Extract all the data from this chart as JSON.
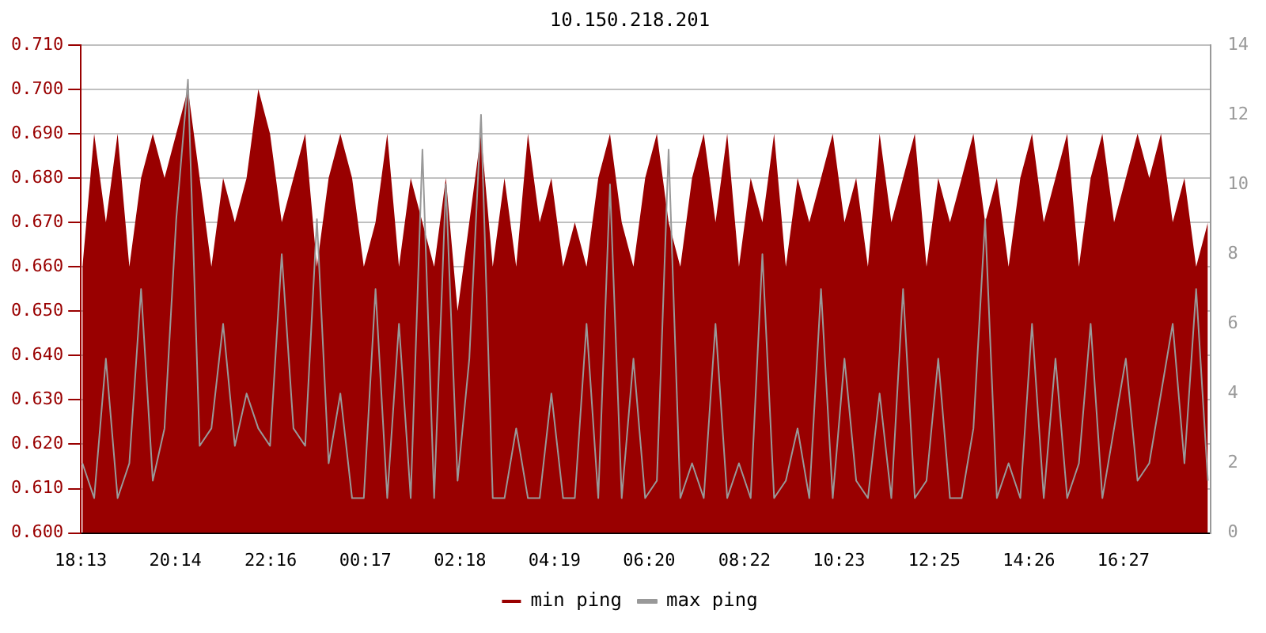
{
  "chart_data": {
    "type": "area",
    "title": "10.150.218.201",
    "legend": "bottom",
    "grid": "y",
    "marker": "none",
    "x": [
      "--01-01T18:15",
      "--01-01T18:30",
      "--01-01T18:45",
      "--01-01T19:00",
      "--01-01T19:15",
      "--01-01T19:30",
      "--01-01T19:45",
      "--01-01T20:00",
      "--01-01T20:15",
      "--01-01T20:30",
      "--01-01T20:45",
      "--01-01T21:00",
      "--01-01T21:15",
      "--01-01T21:30",
      "--01-01T21:45",
      "--01-01T22:00",
      "--01-01T22:15",
      "--01-01T22:30",
      "--01-01T22:45",
      "--01-01T23:00",
      "--01-01T23:15",
      "--01-01T23:30",
      "--01-01T23:45",
      "--01-02T00:00",
      "--01-02T00:15",
      "--01-02T00:30",
      "--01-02T00:45",
      "--01-02T01:00",
      "--01-02T01:15",
      "--01-02T01:30",
      "--01-02T01:45",
      "--01-02T02:00",
      "--01-02T02:15",
      "--01-02T02:30",
      "--01-02T02:45",
      "--01-02T03:00",
      "--01-02T03:15",
      "--01-02T03:30",
      "--01-02T03:45",
      "--01-02T04:00",
      "--01-02T04:15",
      "--01-02T04:30",
      "--01-02T04:45",
      "--01-02T05:00",
      "--01-02T05:15",
      "--01-02T05:30",
      "--01-02T05:45",
      "--01-02T06:00",
      "--01-02T06:15",
      "--01-02T06:30",
      "--01-02T06:45",
      "--01-02T07:00",
      "--01-02T07:15",
      "--01-02T07:30",
      "--01-02T07:45",
      "--01-02T08:00",
      "--01-02T08:15",
      "--01-02T08:30",
      "--01-02T08:45",
      "--01-02T09:00",
      "--01-02T09:15",
      "--01-02T09:30",
      "--01-02T09:45",
      "--01-02T10:00",
      "--01-02T10:15",
      "--01-02T10:30",
      "--01-02T10:45",
      "--01-02T11:00",
      "--01-02T11:15",
      "--01-02T11:30",
      "--01-02T11:45",
      "--01-02T12:00",
      "--01-02T12:15",
      "--01-02T12:30",
      "--01-02T12:45",
      "--01-02T13:00",
      "--01-02T13:15",
      "--01-02T13:30",
      "--01-02T13:45",
      "--01-02T14:00",
      "--01-02T14:15",
      "--01-02T14:30",
      "--01-02T14:45",
      "--01-02T15:00",
      "--01-02T15:15",
      "--01-02T15:30",
      "--01-02T15:45",
      "--01-02T16:00",
      "--01-02T16:15",
      "--01-02T16:30",
      "--01-02T16:45",
      "--01-02T17:00",
      "--01-02T17:15",
      "--01-02T17:30",
      "--01-02T17:45",
      "--01-02T18:00",
      "--01-02T18:15"
    ],
    "xlim": [
      "--01-01T18:13",
      "--01-02T18:18"
    ],
    "xticks": [
      {
        "value": "--01-01T18:13",
        "label": "18:13"
      },
      {
        "value": "--01-01T20:14",
        "label": "20:14"
      },
      {
        "value": "--01-01T22:16",
        "label": "22:16"
      },
      {
        "value": "--01-02T00:17",
        "label": "00:17"
      },
      {
        "value": "--01-02T02:18",
        "label": "02:18"
      },
      {
        "value": "--01-02T04:19",
        "label": "04:19"
      },
      {
        "value": "--01-02T06:20",
        "label": "06:20"
      },
      {
        "value": "--01-02T08:22",
        "label": "08:22"
      },
      {
        "value": "--01-02T10:23",
        "label": "10:23"
      },
      {
        "value": "--01-02T12:25",
        "label": "12:25"
      },
      {
        "value": "--01-02T14:26",
        "label": "14:26"
      },
      {
        "value": "--01-02T16:27",
        "label": "16:27"
      }
    ],
    "ylim": [
      0.6,
      0.71
    ],
    "yticks": [
      {
        "value": 0.6,
        "label": "0.600"
      },
      {
        "value": 0.61,
        "label": "0.610"
      },
      {
        "value": 0.62,
        "label": "0.620"
      },
      {
        "value": 0.63,
        "label": "0.630"
      },
      {
        "value": 0.64,
        "label": "0.640"
      },
      {
        "value": 0.65,
        "label": "0.650"
      },
      {
        "value": 0.66,
        "label": "0.660"
      },
      {
        "value": 0.67,
        "label": "0.670"
      },
      {
        "value": 0.68,
        "label": "0.680"
      },
      {
        "value": 0.69,
        "label": "0.690"
      },
      {
        "value": 0.7,
        "label": "0.700"
      },
      {
        "value": 0.71,
        "label": "0.710"
      }
    ],
    "y2lim": [
      0,
      14
    ],
    "y2ticks": [
      0,
      2,
      4,
      6,
      8,
      10,
      12,
      14
    ],
    "series": [
      {
        "name": "min ping",
        "color": "#990000",
        "values": [
          0.66,
          0.69,
          0.67,
          0.69,
          0.66,
          0.68,
          0.69,
          0.68,
          0.69,
          0.7,
          0.68,
          0.66,
          0.68,
          0.67,
          0.68,
          0.7,
          0.69,
          0.67,
          0.68,
          0.69,
          0.66,
          0.68,
          0.69,
          0.68,
          0.66,
          0.67,
          0.69,
          0.66,
          0.68,
          0.67,
          0.66,
          0.68,
          0.65,
          0.67,
          0.69,
          0.66,
          0.68,
          0.66,
          0.69,
          0.67,
          0.68,
          0.66,
          0.67,
          0.66,
          0.68,
          0.69,
          0.67,
          0.66,
          0.68,
          0.69,
          0.67,
          0.66,
          0.68,
          0.69,
          0.67,
          0.69,
          0.66,
          0.68,
          0.67,
          0.69,
          0.66,
          0.68,
          0.67,
          0.68,
          0.69,
          0.67,
          0.68,
          0.66,
          0.69,
          0.67,
          0.68,
          0.69,
          0.66,
          0.68,
          0.67,
          0.68,
          0.69,
          0.67,
          0.68,
          0.66,
          0.68,
          0.69,
          0.67,
          0.68,
          0.69,
          0.66,
          0.68,
          0.69,
          0.67,
          0.68,
          0.69,
          0.68,
          0.69,
          0.67,
          0.68,
          0.66,
          0.67
        ]
      },
      {
        "name": "max ping",
        "type": "line",
        "axis": "y2",
        "color": "#999999",
        "values": [
          2,
          1,
          5,
          1,
          2,
          7,
          1.5,
          3,
          9,
          13,
          2.5,
          3,
          6,
          2.5,
          4,
          3,
          2.5,
          8,
          3,
          2.5,
          9,
          2,
          4,
          1,
          1,
          7,
          1,
          6,
          1,
          11,
          1,
          10,
          1.5,
          5,
          12,
          1,
          1,
          3,
          1,
          1,
          4,
          1,
          1,
          6,
          1,
          10,
          1,
          5,
          1,
          1.5,
          11,
          1,
          2,
          1,
          6,
          1,
          2,
          1,
          8,
          1,
          1.5,
          3,
          1,
          7,
          1,
          5,
          1.5,
          1,
          4,
          1,
          7,
          1,
          1.5,
          5,
          1,
          1,
          3,
          9,
          1,
          2,
          1,
          6,
          1,
          5,
          1,
          2,
          6,
          1,
          3,
          5,
          1.5,
          2,
          4,
          6,
          2,
          7,
          1.5
        ]
      }
    ]
  }
}
